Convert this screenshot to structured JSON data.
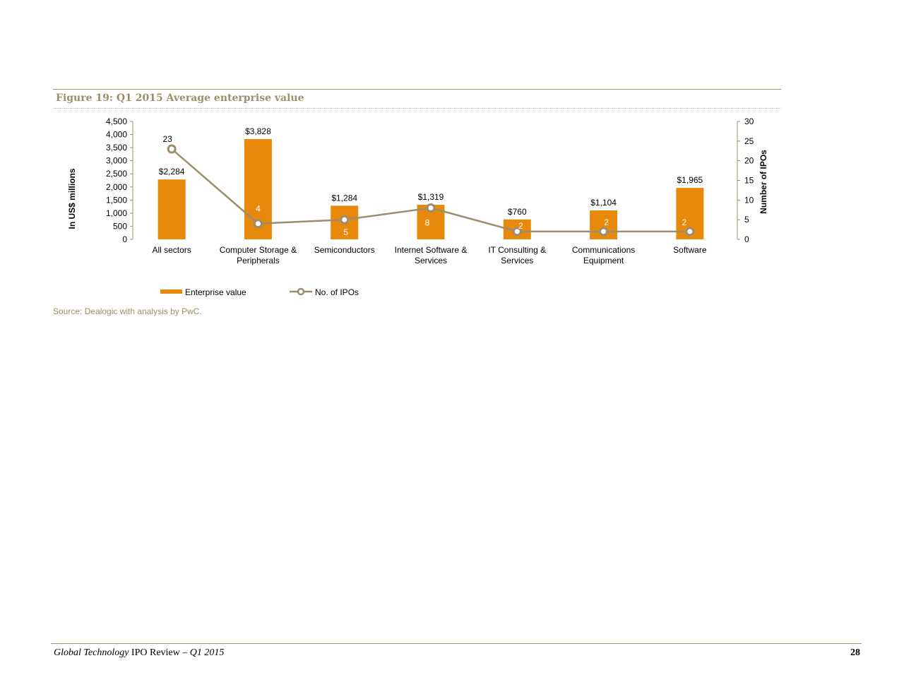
{
  "figure": {
    "title": "Figure 19: Q1 2015 Average enterprise value",
    "source": "Source: Dealogic with analysis by PwC."
  },
  "chart_data": {
    "type": "bar",
    "categories": [
      [
        "All sectors"
      ],
      [
        "Computer Storage &",
        "Peripherals"
      ],
      [
        "Semiconductors"
      ],
      [
        "Internet Software &",
        "Services"
      ],
      [
        "IT Consulting &",
        "Services"
      ],
      [
        "Communications",
        "Equipment"
      ],
      [
        "Software"
      ]
    ],
    "series": [
      {
        "name": "Enterprise value",
        "type": "bar",
        "axis": "left",
        "values": [
          2284,
          3828,
          1284,
          1319,
          760,
          1104,
          1965
        ],
        "labels": [
          "$2,284",
          "$3,828",
          "$1,284",
          "$1,319",
          "$760",
          "$1,104",
          "$1,965"
        ],
        "color": "#e8890c"
      },
      {
        "name": "No. of IPOs",
        "type": "line",
        "axis": "right",
        "values": [
          23,
          4,
          5,
          8,
          2,
          2,
          2
        ],
        "labels": [
          "23",
          "4",
          "5",
          "8",
          "2",
          "2",
          "2"
        ],
        "color": "#9c8e6c"
      }
    ],
    "ylabel": "In US$ millions",
    "y2label": "Number of IPOs",
    "ylim": [
      0,
      4500
    ],
    "yticks": [
      "0",
      "500",
      "1,000",
      "1,500",
      "2,000",
      "2,500",
      "3,000",
      "3,500",
      "4,000",
      "4,500"
    ],
    "y2lim": [
      0,
      30
    ],
    "y2ticks": [
      "0",
      "5",
      "10",
      "15",
      "20",
      "25",
      "30"
    ],
    "grid": false,
    "legend": "bottom-left"
  },
  "footer": {
    "doc_title_italic": "Global Technology",
    "doc_title_rest": " IPO Review – ",
    "doc_period": "Q1 2015",
    "page": "28"
  }
}
